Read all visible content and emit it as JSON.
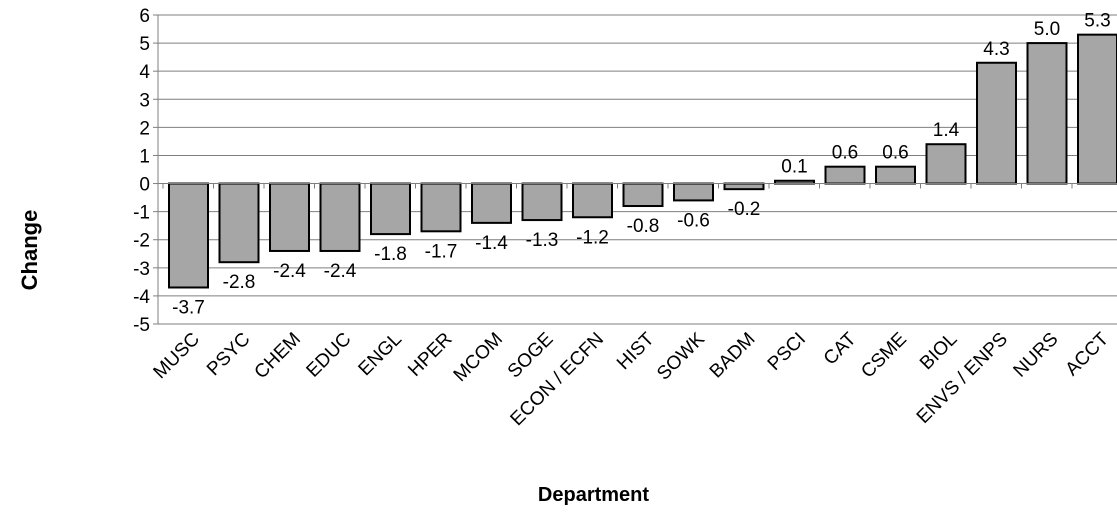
{
  "chart_data": {
    "type": "bar",
    "categories": [
      "MUSC",
      "PSYC",
      "CHEM",
      "EDUC",
      "ENGL",
      "HPER",
      "MCOM",
      "SOGE",
      "ECON / ECFN",
      "HIST",
      "SOWK",
      "BADM",
      "PSCI",
      "CAT",
      "CSME",
      "BIOL",
      "ENVS / ENPS",
      "NURS",
      "ACCT"
    ],
    "values": [
      -3.7,
      -2.8,
      -2.4,
      -2.4,
      -1.8,
      -1.7,
      -1.4,
      -1.3,
      -1.2,
      -0.8,
      -0.6,
      -0.2,
      0.1,
      0.6,
      0.6,
      1.4,
      4.3,
      5.0,
      5.3
    ],
    "data_labels": [
      "-3.7",
      "-2.8",
      "-2.4",
      "-2.4",
      "-1.8",
      "-1.7",
      "-1.4",
      "-1.3",
      "-1.2",
      "-0.8",
      "-0.6",
      "-0.2",
      "0.1",
      "0.6",
      "0.6",
      "1.4",
      "4.3",
      "5.0",
      "5.3"
    ],
    "title": "",
    "xlabel": "Department",
    "ylabel": "Change",
    "ylim": [
      -5,
      6
    ],
    "yticks": [
      6,
      5,
      4,
      3,
      2,
      1,
      0,
      -1,
      -2,
      -3,
      -4,
      -5
    ],
    "grid": true,
    "bar_color": "#a6a6a6",
    "bar_edge_color": "#000000"
  }
}
